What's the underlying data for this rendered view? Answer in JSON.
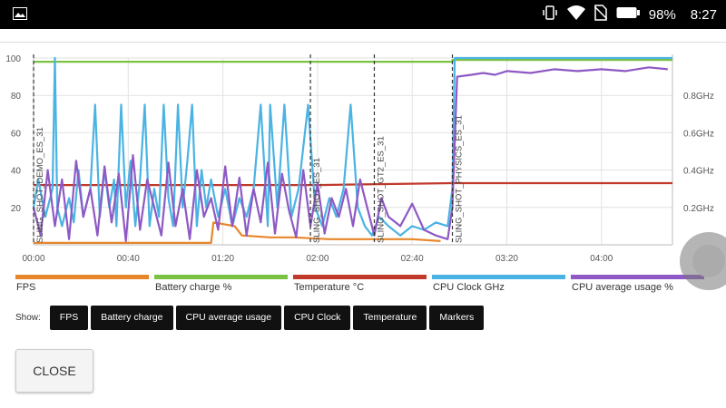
{
  "status_bar": {
    "battery_percent": "98%",
    "time": "8:27",
    "left_icon": "gallery-icon",
    "icons": [
      "vibrate-icon",
      "wifi-icon",
      "no-sim-icon",
      "battery-icon"
    ]
  },
  "chart_data": {
    "type": "line",
    "x_ticks": [
      "00:00",
      "00:40",
      "01:20",
      "02:00",
      "02:40",
      "03:20",
      "04:00"
    ],
    "x_range_seconds": [
      0,
      270
    ],
    "y_left_ticks": [
      20,
      40,
      60,
      80,
      100
    ],
    "y_left_range": [
      0,
      100
    ],
    "y_right_ticks": [
      "0.2GHz",
      "0.4GHz",
      "0.6GHz",
      "0.8GHz"
    ],
    "y_right_range_ghz": [
      0,
      1.0
    ],
    "grid": true,
    "markers": [
      {
        "label": "SLING_SHOT_DEMO_ES_31",
        "x": 0
      },
      {
        "label": "SLING_SHOT_ES_31",
        "x": 117
      },
      {
        "label": "SLING_SHOT_GT2_ES_31",
        "x": 144
      },
      {
        "label": "SLING_SHOT_PHYSICS_ES_31",
        "x": 177
      }
    ],
    "series": [
      {
        "name": "FPS",
        "color": "#e8862a",
        "x": [
          0,
          75,
          76,
          85,
          88,
          100,
          110,
          125,
          140,
          160,
          172
        ],
        "y": [
          1,
          1,
          12,
          10,
          5,
          4,
          4,
          3,
          3,
          3,
          2
        ]
      },
      {
        "name": "Battery charge %",
        "color": "#7cc242",
        "x": [
          0,
          177,
          177,
          270
        ],
        "y": [
          98,
          98,
          99,
          99
        ]
      },
      {
        "name": "Temperature °C",
        "color": "#c0392b",
        "x": [
          0,
          60,
          120,
          177,
          220,
          270
        ],
        "y": [
          32,
          32,
          32,
          33,
          33,
          33
        ]
      },
      {
        "name": "CPU Clock GHz",
        "color": "#4ab3e3",
        "x": [
          0,
          2,
          5,
          8,
          9,
          10,
          12,
          15,
          17,
          19,
          21,
          24,
          26,
          28,
          30,
          32,
          34,
          35,
          37,
          39,
          41,
          43,
          45,
          47,
          49,
          51,
          53,
          55,
          57,
          59,
          61,
          63,
          65,
          67,
          69,
          71,
          73,
          75,
          78,
          81,
          84,
          87,
          90,
          93,
          96,
          99,
          100,
          103,
          106,
          109,
          112,
          116,
          119,
          122,
          125,
          128,
          131,
          134,
          137,
          140,
          143,
          146,
          150,
          155,
          160,
          165,
          170,
          175,
          177,
          178,
          270
        ],
        "y": [
          0.2,
          0.35,
          0.15,
          0.3,
          1.0,
          0.2,
          0.1,
          0.25,
          0.12,
          0.4,
          0.15,
          0.3,
          0.75,
          0.15,
          0.4,
          0.2,
          0.35,
          0.1,
          0.75,
          0.2,
          0.45,
          0.1,
          0.35,
          0.75,
          0.1,
          0.3,
          0.15,
          0.75,
          0.25,
          0.1,
          0.75,
          0.2,
          0.45,
          0.75,
          0.1,
          0.4,
          0.2,
          0.35,
          0.15,
          0.3,
          0.1,
          0.25,
          0.15,
          0.3,
          0.75,
          0.1,
          0.75,
          0.2,
          0.75,
          0.15,
          0.3,
          0.75,
          0.2,
          0.1,
          0.25,
          0.15,
          0.3,
          0.75,
          0.2,
          0.1,
          0.05,
          0.15,
          0.1,
          0.05,
          0.1,
          0.08,
          0.12,
          0.1,
          0.3,
          1.0,
          1.0
        ]
      },
      {
        "name": "CPU average usage %",
        "color": "#8e59c4",
        "x": [
          0,
          3,
          6,
          9,
          12,
          15,
          18,
          21,
          24,
          27,
          30,
          33,
          36,
          39,
          42,
          45,
          48,
          51,
          54,
          57,
          60,
          63,
          66,
          69,
          72,
          75,
          78,
          81,
          84,
          87,
          90,
          93,
          96,
          99,
          102,
          105,
          108,
          111,
          114,
          117,
          120,
          123,
          126,
          129,
          132,
          135,
          138,
          141,
          144,
          147,
          150,
          155,
          160,
          165,
          170,
          175,
          177,
          179,
          185,
          190,
          195,
          200,
          210,
          220,
          230,
          240,
          250,
          260,
          268
        ],
        "y": [
          20,
          5,
          40,
          10,
          35,
          3,
          45,
          15,
          30,
          5,
          42,
          12,
          38,
          2,
          48,
          8,
          35,
          20,
          5,
          44,
          10,
          30,
          3,
          40,
          15,
          25,
          8,
          42,
          10,
          36,
          5,
          30,
          12,
          44,
          6,
          38,
          18,
          4,
          40,
          10,
          33,
          6,
          25,
          15,
          30,
          10,
          35,
          20,
          5,
          25,
          15,
          10,
          22,
          8,
          5,
          3,
          20,
          90,
          91,
          92,
          91,
          93,
          92,
          94,
          93,
          94,
          93,
          95,
          94
        ]
      }
    ]
  },
  "legend": [
    {
      "label": "FPS",
      "color": "#e8862a"
    },
    {
      "label": "Battery charge %",
      "color": "#7cc242"
    },
    {
      "label": "Temperature °C",
      "color": "#c0392b"
    },
    {
      "label": "CPU Clock GHz",
      "color": "#4ab3e3"
    },
    {
      "label": "CPU average usage %",
      "color": "#8e59c4"
    }
  ],
  "show": {
    "label": "Show:",
    "buttons": [
      "FPS",
      "Battery charge",
      "CPU average usage",
      "CPU Clock",
      "Temperature",
      "Markers"
    ]
  },
  "close_label": "CLOSE"
}
